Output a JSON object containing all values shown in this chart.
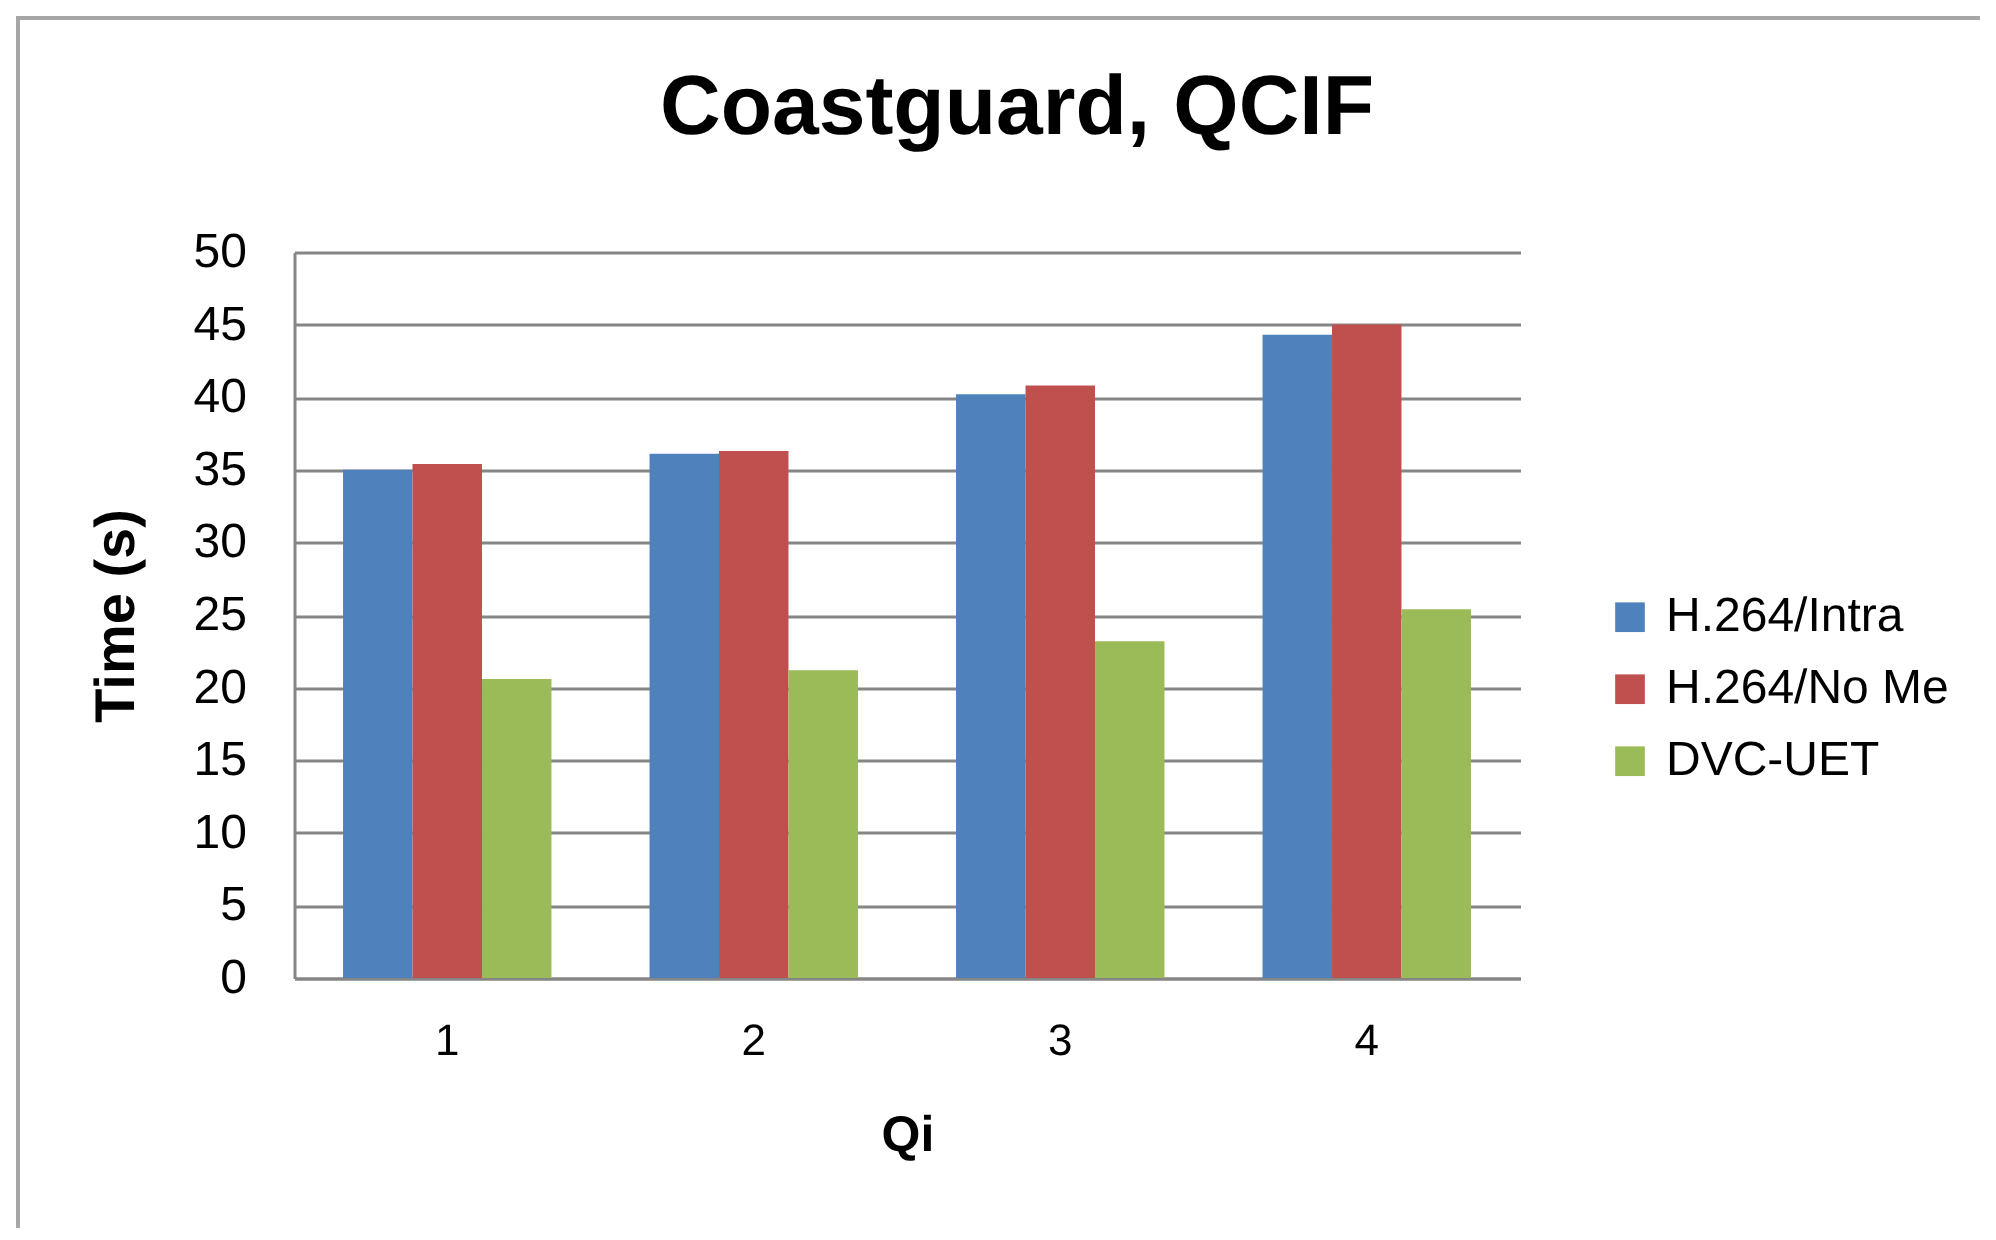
{
  "chart_data": {
    "type": "bar",
    "title": "Coastguard, QCIF",
    "xlabel": "Qi",
    "ylabel": "Time (s)",
    "categories": [
      "1",
      "2",
      "3",
      "4"
    ],
    "series": [
      {
        "name": "H.264/Intra",
        "color": "#4f81bd",
        "values": [
          35.0,
          36.1,
          40.2,
          44.3
        ]
      },
      {
        "name": "H.264/No Me",
        "color": "#c0504d",
        "values": [
          35.4,
          36.3,
          40.8,
          45.0
        ]
      },
      {
        "name": "DVC-UET",
        "color": "#9bbb59",
        "values": [
          20.6,
          21.2,
          23.2,
          25.4
        ]
      }
    ],
    "ylim": [
      0,
      50
    ],
    "yticks": [
      0,
      5,
      10,
      15,
      20,
      25,
      30,
      35,
      40,
      45,
      50
    ],
    "grid": "y",
    "legend": "right"
  }
}
